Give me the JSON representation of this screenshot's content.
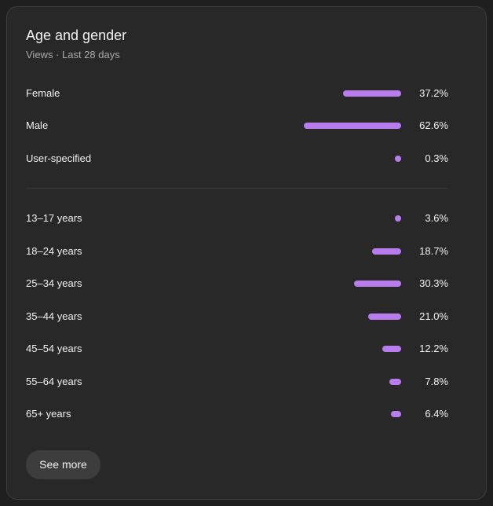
{
  "card": {
    "title": "Age and gender",
    "subtitle": "Views · Last 28 days",
    "accent_color": "#b97ced",
    "gender": [
      {
        "label": "Female",
        "value": "37.2%",
        "fraction": 0.372
      },
      {
        "label": "Male",
        "value": "62.6%",
        "fraction": 0.626
      },
      {
        "label": "User-specified",
        "value": "0.3%",
        "fraction": 0.003
      }
    ],
    "age": [
      {
        "label": "13–17 years",
        "value": "3.6%",
        "fraction": 0.036
      },
      {
        "label": "18–24 years",
        "value": "18.7%",
        "fraction": 0.187
      },
      {
        "label": "25–34 years",
        "value": "30.3%",
        "fraction": 0.303
      },
      {
        "label": "35–44 years",
        "value": "21.0%",
        "fraction": 0.21
      },
      {
        "label": "45–54 years",
        "value": "12.2%",
        "fraction": 0.122
      },
      {
        "label": "55–64 years",
        "value": "7.8%",
        "fraction": 0.078
      },
      {
        "label": "65+ years",
        "value": "6.4%",
        "fraction": 0.064
      }
    ],
    "see_more_label": "See more"
  }
}
